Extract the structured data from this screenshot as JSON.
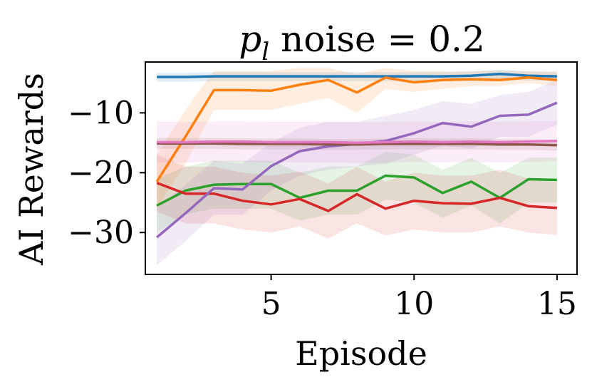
{
  "chart_data": {
    "type": "line",
    "title_var": "p",
    "title_sub": "l",
    "title_rest": " noise = 0.2",
    "xlabel": "Episode",
    "ylabel": "AI Rewards",
    "xlim": [
      0.6,
      15.7
    ],
    "ylim": [
      -37,
      -1.5
    ],
    "xticks": [
      5,
      10,
      15
    ],
    "xtick_labels": [
      "5",
      "10",
      "15"
    ],
    "yticks": [
      -10,
      -20,
      -30
    ],
    "ytick_labels": [
      "−10",
      "−20",
      "−30"
    ],
    "grid": false,
    "x": [
      1,
      2,
      3,
      4,
      5,
      6,
      7,
      8,
      9,
      10,
      11,
      12,
      13,
      14,
      15
    ],
    "series": [
      {
        "color": "#1f77b4",
        "values": [
          -4.0,
          -4.0,
          -3.9,
          -3.9,
          -3.9,
          -3.9,
          -3.9,
          -3.9,
          -3.9,
          -3.9,
          -3.9,
          -3.8,
          -3.5,
          -3.8,
          -3.9
        ],
        "lower": [
          -4.8,
          -4.8,
          -4.7,
          -4.7,
          -4.7,
          -4.7,
          -4.7,
          -4.7,
          -4.7,
          -4.7,
          -4.7,
          -4.6,
          -4.4,
          -4.6,
          -4.7
        ],
        "upper": [
          -3.3,
          -3.3,
          -3.2,
          -3.2,
          -3.2,
          -3.2,
          -3.2,
          -3.2,
          -3.2,
          -3.2,
          -3.2,
          -3.1,
          -2.8,
          -3.1,
          -3.2
        ]
      },
      {
        "color": "#ff7f0e",
        "values": [
          -21.5,
          -14.0,
          -6.2,
          -6.2,
          -6.3,
          -5.3,
          -4.5,
          -6.6,
          -4.1,
          -4.9,
          -4.5,
          -4.4,
          -4.5,
          -4.1,
          -4.5
        ],
        "lower": [
          -26.0,
          -18.5,
          -9.5,
          -9.5,
          -9.5,
          -8.5,
          -7.5,
          -10.0,
          -6.0,
          -6.5,
          -6.0,
          -5.5,
          -5.5,
          -5.0,
          -5.5
        ],
        "upper": [
          -17.0,
          -9.5,
          -3.0,
          -3.0,
          -3.0,
          -2.5,
          -2.5,
          -3.5,
          -2.5,
          -3.0,
          -3.0,
          -3.0,
          -3.0,
          -3.0,
          -3.0
        ]
      },
      {
        "color": "#2ca02c",
        "values": [
          -25.5,
          -23.0,
          -22.0,
          -21.9,
          -21.9,
          -24.2,
          -23.0,
          -23.0,
          -20.5,
          -20.8,
          -23.4,
          -21.5,
          -24.2,
          -21.1,
          -21.2
        ],
        "lower": [
          -30.0,
          -27.0,
          -26.0,
          -26.0,
          -26.0,
          -28.0,
          -27.0,
          -27.0,
          -24.5,
          -25.0,
          -27.5,
          -25.5,
          -28.5,
          -25.0,
          -25.0
        ],
        "upper": [
          -21.0,
          -19.0,
          -18.0,
          -18.0,
          -18.0,
          -20.0,
          -19.0,
          -19.0,
          -16.5,
          -17.0,
          -19.5,
          -17.5,
          -20.0,
          -17.5,
          -17.5
        ]
      },
      {
        "color": "#d62728",
        "values": [
          -21.7,
          -23.5,
          -23.5,
          -24.7,
          -25.3,
          -24.4,
          -26.4,
          -23.6,
          -26.0,
          -24.7,
          -25.1,
          -25.2,
          -24.2,
          -25.6,
          -25.9
        ],
        "lower": [
          -26.5,
          -28.5,
          -28.5,
          -29.5,
          -30.0,
          -29.0,
          -31.0,
          -28.5,
          -30.5,
          -29.5,
          -30.0,
          -30.0,
          -29.0,
          -30.0,
          -30.4
        ],
        "upper": [
          -17.0,
          -19.0,
          -19.0,
          -20.0,
          -20.5,
          -19.8,
          -21.8,
          -19.0,
          -21.5,
          -20.0,
          -20.5,
          -20.5,
          -19.5,
          -21.0,
          -21.5
        ]
      },
      {
        "color": "#9467bd",
        "values": [
          -30.8,
          -26.8,
          -22.6,
          -22.8,
          -18.9,
          -16.4,
          -15.6,
          -15.2,
          -14.7,
          -13.4,
          -11.7,
          -12.3,
          -10.5,
          -10.3,
          -8.3
        ],
        "lower": [
          -35.5,
          -31.5,
          -27.0,
          -27.0,
          -23.0,
          -20.5,
          -19.5,
          -19.0,
          -18.5,
          -17.0,
          -15.5,
          -16.0,
          -14.0,
          -14.0,
          -12.0
        ],
        "upper": [
          -26.0,
          -22.0,
          -18.0,
          -18.5,
          -15.0,
          -12.5,
          -11.5,
          -11.5,
          -10.5,
          -9.5,
          -8.0,
          -8.5,
          -7.0,
          -6.5,
          -4.5
        ]
      },
      {
        "color": "#8c564b",
        "values": [
          -15.1,
          -15.1,
          -15.1,
          -15.2,
          -15.2,
          -15.2,
          -15.3,
          -15.3,
          -15.2,
          -15.2,
          -15.2,
          -15.2,
          -15.3,
          -15.3,
          -15.4
        ],
        "lower": [
          -16.0,
          -16.0,
          -16.0,
          -16.1,
          -16.1,
          -16.1,
          -16.2,
          -16.2,
          -16.1,
          -16.1,
          -16.1,
          -16.1,
          -16.2,
          -16.2,
          -16.3
        ],
        "upper": [
          -14.2,
          -14.2,
          -14.2,
          -14.3,
          -14.3,
          -14.3,
          -14.4,
          -14.4,
          -14.3,
          -14.3,
          -14.3,
          -14.3,
          -14.4,
          -14.4,
          -14.5
        ]
      },
      {
        "color": "#e377c2",
        "values": [
          -14.9,
          -14.9,
          -14.8,
          -14.8,
          -14.9,
          -14.9,
          -14.9,
          -15.0,
          -14.9,
          -14.8,
          -14.9,
          -14.8,
          -14.9,
          -14.8,
          -14.7
        ],
        "lower": [
          -18.3,
          -18.3,
          -18.2,
          -18.2,
          -18.3,
          -18.3,
          -18.3,
          -18.4,
          -18.3,
          -18.2,
          -18.3,
          -18.2,
          -18.3,
          -18.2,
          -18.1
        ],
        "upper": [
          -11.5,
          -11.5,
          -11.4,
          -11.4,
          -11.5,
          -11.5,
          -11.5,
          -11.6,
          -11.5,
          -11.4,
          -11.5,
          -11.4,
          -11.5,
          -11.4,
          -11.3
        ]
      }
    ]
  }
}
